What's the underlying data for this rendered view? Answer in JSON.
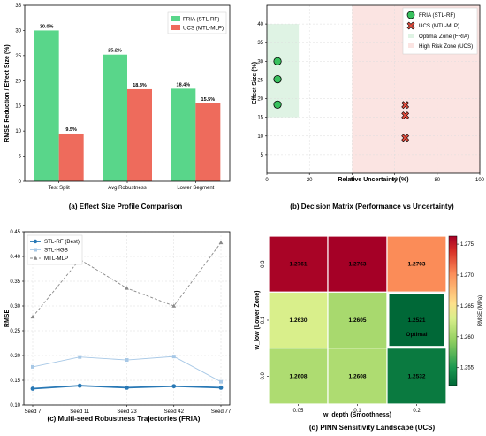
{
  "chart_data": [
    {
      "type": "bar",
      "caption": "(a) Effect Size Profile Comparison",
      "ylabel": "RMSE Reduction / Effect Size (%)",
      "ylim": [
        0,
        35
      ],
      "yticks": [
        0,
        5,
        10,
        15,
        20,
        25,
        30,
        35
      ],
      "categories": [
        "Test Split",
        "Avg Robustness",
        "Lower Segment"
      ],
      "legend_position": "top-right",
      "series": [
        {
          "name": "FRIA (STL-RF)",
          "color": "#59d68a",
          "values": [
            30.0,
            25.2,
            18.4
          ],
          "labels": [
            "30.0%",
            "25.2%",
            "18.4%"
          ]
        },
        {
          "name": "UCS (MTL-MLP)",
          "color": "#ee6b5c",
          "values": [
            9.5,
            18.3,
            15.5
          ],
          "labels": [
            "9.5%",
            "18.3%",
            "15.5%"
          ]
        }
      ]
    },
    {
      "type": "scatter",
      "caption": "(b) Decision Matrix (Performance vs Uncertainty)",
      "xlabel": "Relative Uncertainty (%)",
      "ylabel": "Effect Size (%)",
      "xlim": [
        0,
        100
      ],
      "ylim": [
        0,
        45
      ],
      "xticks": [
        0,
        20,
        40,
        60,
        80,
        100
      ],
      "yticks": [
        5,
        10,
        15,
        20,
        25,
        30,
        35,
        40
      ],
      "grid": true,
      "legend_position": "top-right",
      "zones": [
        {
          "name": "Optimal Zone (FRIA)",
          "color": "#dff3e4",
          "x": [
            0,
            15
          ],
          "y": [
            15,
            40
          ]
        },
        {
          "name": "High Risk Zone (UCS)",
          "color": "#fbe4e2",
          "x": [
            40,
            100
          ],
          "y": [
            0,
            45
          ]
        }
      ],
      "series": [
        {
          "name": "FRIA (STL-RF)",
          "marker": "circle",
          "color": "#39c15e",
          "points": [
            [
              5,
              30.0
            ],
            [
              5,
              25.2
            ],
            [
              5,
              18.4
            ]
          ]
        },
        {
          "name": "UCS (MTL-MLP)",
          "marker": "x",
          "color": "#e24b3c",
          "points": [
            [
              65,
              18.3
            ],
            [
              65,
              15.5
            ],
            [
              65,
              9.5
            ]
          ]
        }
      ]
    },
    {
      "type": "line",
      "caption": "(c) Multi-seed Robustness Trajectories (FRIA)",
      "ylabel": "RMSE",
      "ylim": [
        0.1,
        0.45
      ],
      "yticks": [
        0.1,
        0.15,
        0.2,
        0.25,
        0.3,
        0.35,
        0.4,
        0.45
      ],
      "ytick_labels": [
        "0.10",
        "0.15",
        "0.20",
        "0.25",
        "0.30",
        "0.35",
        "0.40",
        "0.45"
      ],
      "categories": [
        "Seed 7",
        "Seed 11",
        "Seed 23",
        "Seed 42",
        "Seed 77"
      ],
      "grid": true,
      "legend_position": "top-left",
      "series": [
        {
          "name": "STL-RF (Best)",
          "color": "#2878b5",
          "style": "solid-circle",
          "values": [
            0.133,
            0.139,
            0.135,
            0.138,
            0.135
          ]
        },
        {
          "name": "STL-HGB",
          "color": "#a7c8e6",
          "style": "solid-square",
          "values": [
            0.177,
            0.197,
            0.191,
            0.198,
            0.147
          ]
        },
        {
          "name": "MTL-MLP",
          "color": "#888888",
          "style": "dashed-triangle",
          "values": [
            0.278,
            0.394,
            0.336,
            0.3,
            0.428
          ]
        }
      ]
    },
    {
      "type": "heatmap",
      "caption": "(d) PINN Sensitivity Landscape (UCS)",
      "xlabel": "w_depth (Smoothness)",
      "ylabel": "w_low (Lower Zone)",
      "x": [
        "0.05",
        "0.1",
        "0.2"
      ],
      "y": [
        "0.3",
        "0.1",
        "0.0"
      ],
      "values": [
        [
          1.2761,
          1.2763,
          1.2703
        ],
        [
          1.263,
          1.2605,
          1.2521
        ],
        [
          1.2608,
          1.2608,
          1.2532
        ]
      ],
      "cell_labels": [
        [
          "1.2761",
          "1.2763",
          "1.2703"
        ],
        [
          "1.2630",
          "1.2605",
          "1.2521"
        ],
        [
          "1.2608",
          "1.2608",
          "1.2532"
        ]
      ],
      "annotation": {
        "row": 1,
        "col": 2,
        "text": "Optimal"
      },
      "colorbar": {
        "label": "RMSE (MPa)",
        "range": [
          1.2521,
          1.2763
        ],
        "ticks": [
          1.255,
          1.26,
          1.265,
          1.27,
          1.275
        ],
        "tick_labels": [
          "1.255",
          "1.260",
          "1.265",
          "1.270",
          "1.275"
        ]
      }
    }
  ]
}
